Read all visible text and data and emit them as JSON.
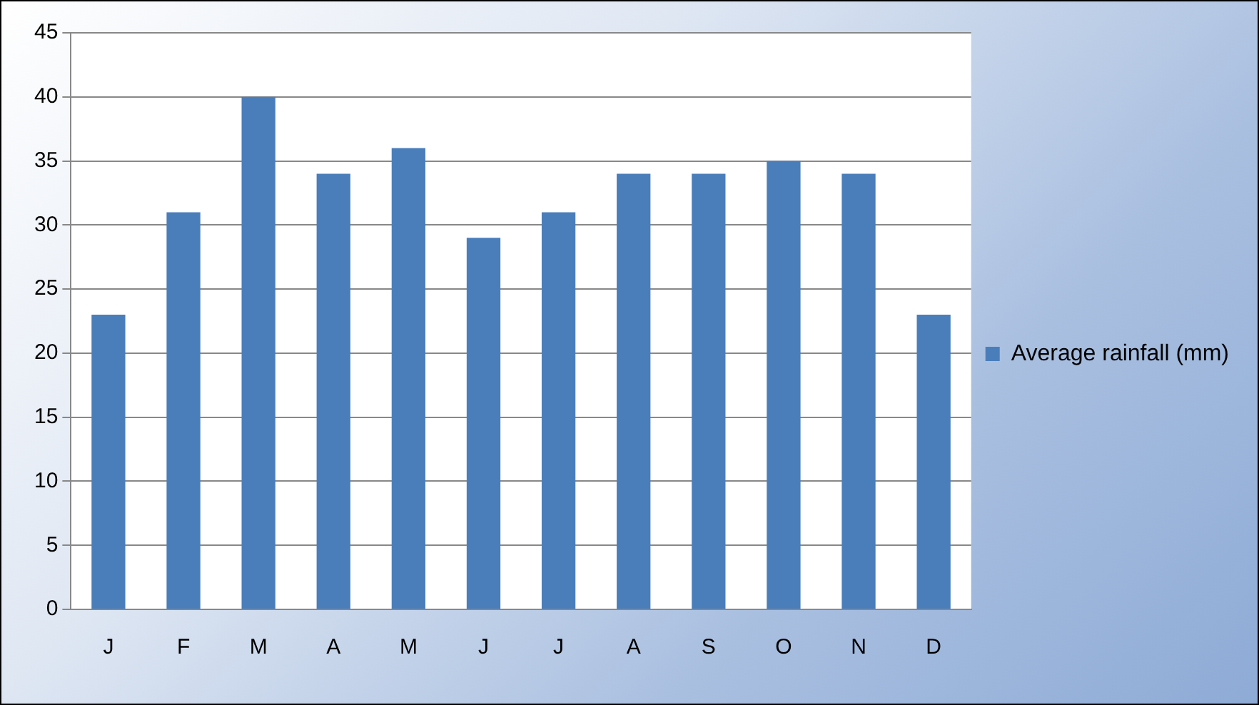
{
  "chart_data": {
    "type": "bar",
    "categories": [
      "J",
      "F",
      "M",
      "A",
      "M",
      "J",
      "J",
      "A",
      "S",
      "O",
      "N",
      "D"
    ],
    "series": [
      {
        "name": "Average rainfall (mm)",
        "color": "#4a7ebb",
        "values": [
          23,
          31,
          40,
          34,
          36,
          29,
          31,
          34,
          34,
          35,
          34,
          23
        ]
      }
    ],
    "ylim": [
      0,
      45
    ],
    "yticks": [
      0,
      5,
      10,
      15,
      20,
      25,
      30,
      35,
      40,
      45
    ],
    "grid": "y",
    "legend": "right"
  }
}
